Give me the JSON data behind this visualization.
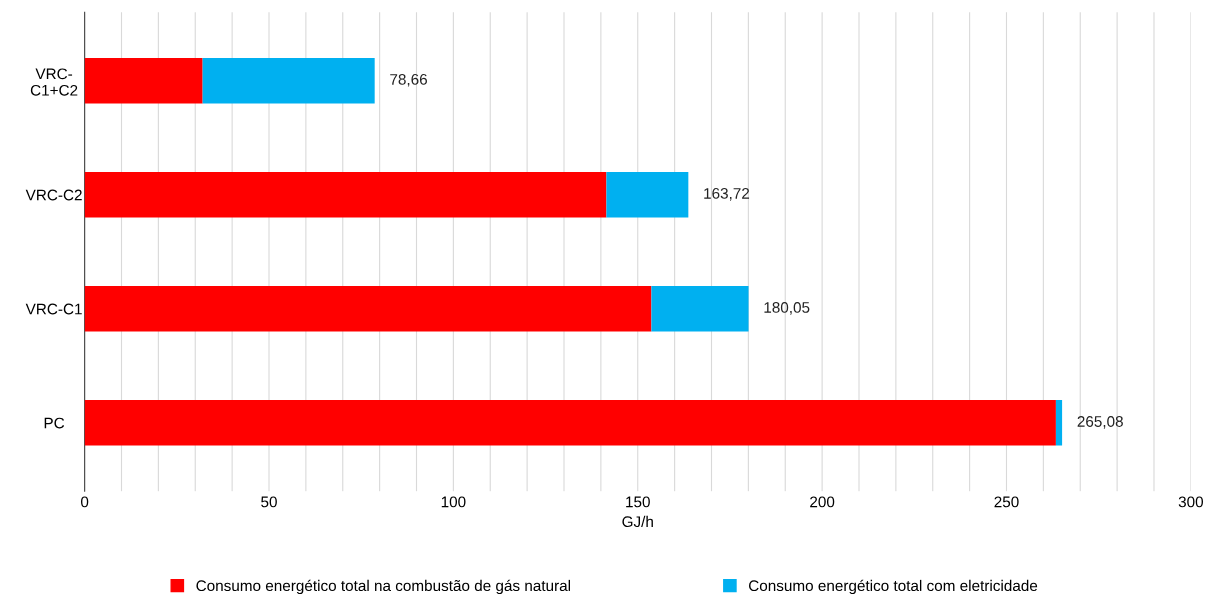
{
  "chart_data": {
    "type": "bar",
    "orientation": "horizontal",
    "stacked": true,
    "xlabel": "GJ/h",
    "categories": [
      "VRC-\nC1+C2",
      "VRC-C2",
      "VRC-C1",
      "PC"
    ],
    "series": [
      {
        "name": "Consumo energético total na combustão de gás natural",
        "color": "#ff0000",
        "values": [
          32.0,
          141.5,
          153.7,
          263.4
        ]
      },
      {
        "name": "Consumo energético total com eletricidade",
        "color": "#00b0f0",
        "values": [
          46.66,
          22.22,
          26.35,
          1.68
        ]
      }
    ],
    "totals": [
      "78,66",
      "163,72",
      "180,05",
      "265,08"
    ],
    "xlim": [
      0,
      300
    ],
    "xticks": [
      0,
      {
        "value": 10,
        "label": null
      },
      {
        "value": 20,
        "label": null
      },
      {
        "value": 30,
        "label": null
      },
      {
        "value": 40,
        "label": null
      },
      50,
      {
        "value": 60,
        "label": null
      },
      {
        "value": 70,
        "label": null
      },
      {
        "value": 80,
        "label": null
      },
      {
        "value": 90,
        "label": null
      },
      100,
      {
        "value": 110,
        "label": null
      },
      {
        "value": 120,
        "label": null
      },
      {
        "value": 130,
        "label": null
      },
      {
        "value": 140,
        "label": null
      },
      150,
      {
        "value": 160,
        "label": null
      },
      {
        "value": 170,
        "label": null
      },
      {
        "value": 180,
        "label": null
      },
      {
        "value": 190,
        "label": null
      },
      200,
      {
        "value": 210,
        "label": null
      },
      {
        "value": 220,
        "label": null
      },
      {
        "value": 230,
        "label": null
      },
      {
        "value": 240,
        "label": null
      },
      250,
      {
        "value": 260,
        "label": null
      },
      {
        "value": 270,
        "label": null
      },
      {
        "value": 280,
        "label": null
      },
      {
        "value": 290,
        "label": null
      },
      300
    ],
    "grid": "x",
    "legend": "bottom"
  }
}
